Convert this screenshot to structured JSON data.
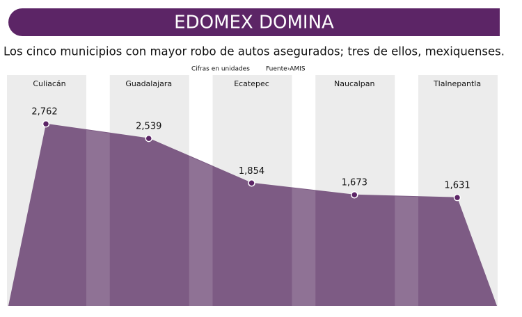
{
  "chart_data": {
    "type": "area",
    "title": "EDOMEX DOMINA",
    "subtitle": "Los cinco municipios con mayor robo de autos asegurados; tres de ellos, mexiquenses.",
    "note": "Cifras en unidades",
    "source": "Fuente›AMIS",
    "categories": [
      "Culiacán",
      "Guadalajara",
      "Ecatepec",
      "Naucalpan",
      "Tlalnepantla"
    ],
    "values": [
      2762,
      2539,
      1854,
      1673,
      1631
    ],
    "value_labels": [
      "2,762",
      "2,539",
      "1,854",
      "1,673",
      "1,631"
    ],
    "color": "#7d5b84"
  }
}
